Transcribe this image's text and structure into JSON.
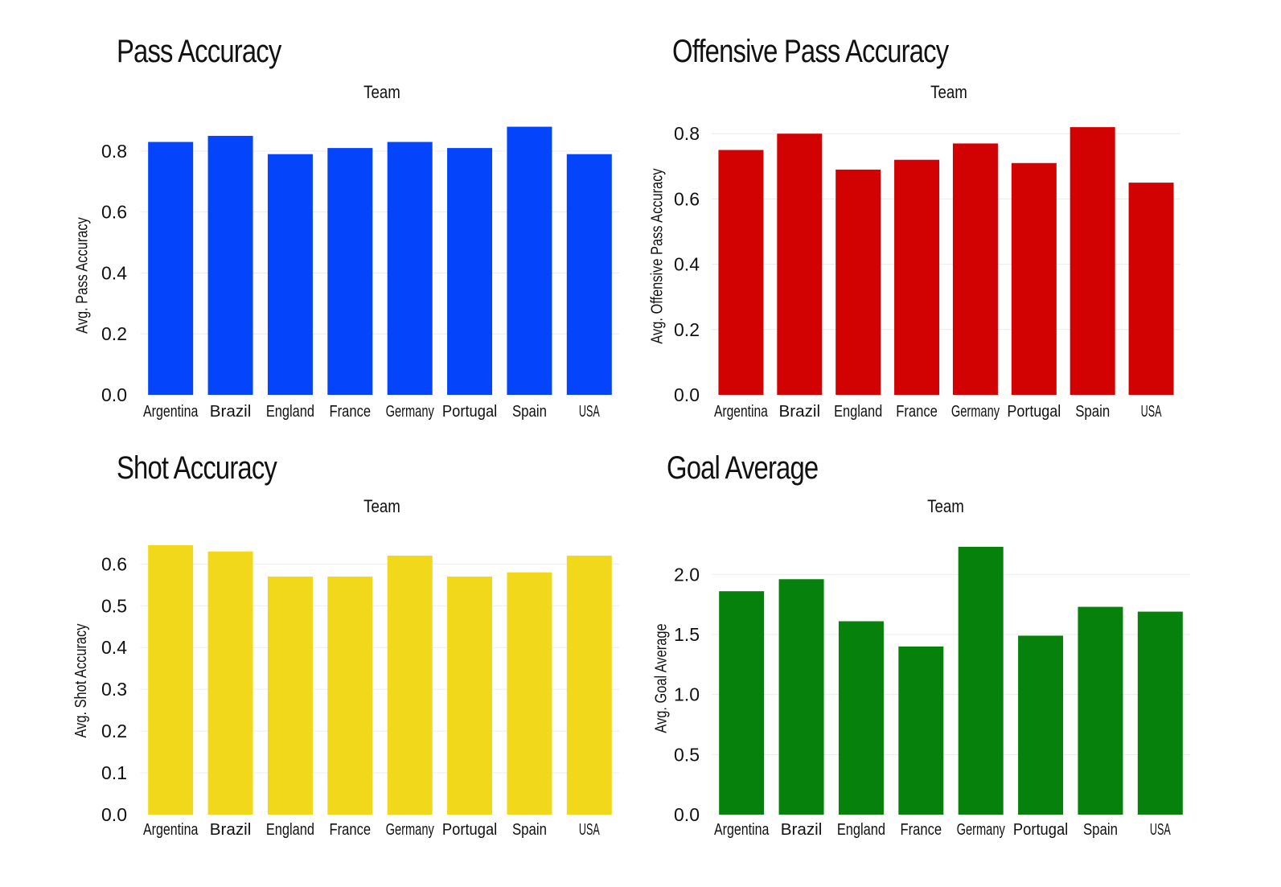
{
  "chart_data": [
    {
      "type": "bar",
      "title": "Pass Accuracy",
      "xlabel": "Team",
      "ylabel": "Avg. Pass Accuracy",
      "categories": [
        "Argentina",
        "Brazil",
        "England",
        "France",
        "Germany",
        "Portugal",
        "Spain",
        "USA"
      ],
      "values": [
        0.83,
        0.85,
        0.79,
        0.81,
        0.83,
        0.81,
        0.88,
        0.79
      ],
      "ylim": [
        0,
        0.9
      ],
      "yticks": [
        "0.0",
        "0.2",
        "0.4",
        "0.6",
        "0.8"
      ],
      "color": "#0444fb",
      "grid": true
    },
    {
      "type": "bar",
      "title": "Offensive Pass Accuracy",
      "xlabel": "Team",
      "ylabel": "Avg. Offensive Pass Accuracy",
      "categories": [
        "Argentina",
        "Brazil",
        "England",
        "France",
        "Germany",
        "Portugal",
        "Spain",
        "USA"
      ],
      "values": [
        0.75,
        0.8,
        0.69,
        0.72,
        0.77,
        0.71,
        0.82,
        0.65
      ],
      "ylim": [
        0,
        0.84
      ],
      "yticks": [
        "0.0",
        "0.2",
        "0.4",
        "0.6",
        "0.8"
      ],
      "color": "#d20102",
      "grid": true
    },
    {
      "type": "bar",
      "title": "Shot Accuracy",
      "xlabel": "Team",
      "ylabel": "Avg. Shot Accuracy",
      "categories": [
        "Argentina",
        "Brazil",
        "England",
        "France",
        "Germany",
        "Portugal",
        "Spain",
        "USA"
      ],
      "values": [
        0.645,
        0.63,
        0.57,
        0.57,
        0.62,
        0.57,
        0.58,
        0.62
      ],
      "ylim": [
        0,
        0.67
      ],
      "yticks": [
        "0.0",
        "0.1",
        "0.2",
        "0.3",
        "0.4",
        "0.5",
        "0.6"
      ],
      "color": "#f2d81a",
      "grid": true
    },
    {
      "type": "bar",
      "title": "Goal Average",
      "xlabel": "Team",
      "ylabel": "Avg. Goal Average",
      "categories": [
        "Argentina",
        "Brazil",
        "England",
        "France",
        "Germany",
        "Portugal",
        "Spain",
        "USA"
      ],
      "values": [
        1.86,
        1.96,
        1.61,
        1.4,
        2.23,
        1.49,
        1.73,
        1.69
      ],
      "ylim": [
        0,
        2.33
      ],
      "yticks": [
        "0.0",
        "0.5",
        "1.0",
        "1.5",
        "2.0"
      ],
      "color": "#06810b",
      "grid": true
    }
  ]
}
